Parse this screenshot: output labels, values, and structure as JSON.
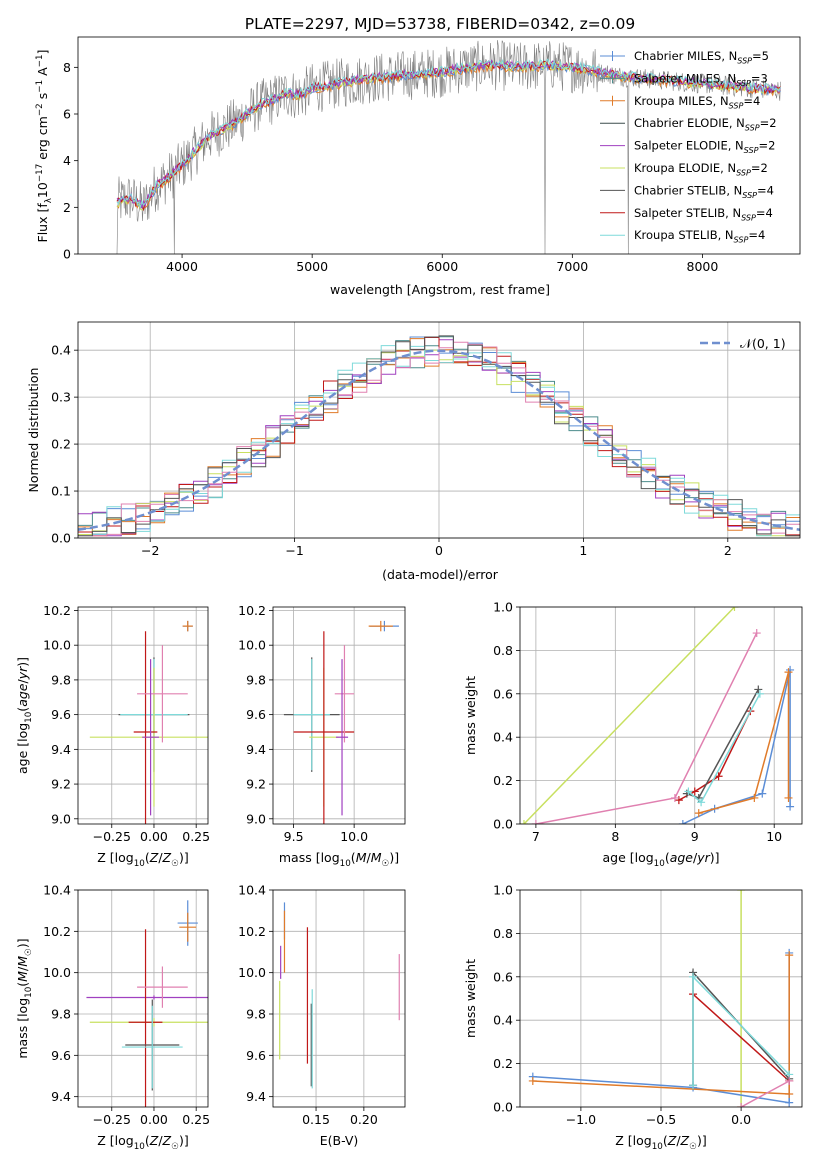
{
  "figure_title": "PLATE=2297, MJD=53738, FIBERID=0342, z=0.09",
  "series_colors": {
    "chabrier_miles": "#5b8dd6",
    "salpeter_miles": "#4c8c8c",
    "kroupa_miles": "#e07b2a",
    "chabrier_elodie": "#3d4d4d",
    "salpeter_elodie": "#a040c0",
    "kroupa_elodie": "#c8e060",
    "chabrier_stelib": "#555555",
    "salpeter_stelib": "#c01818",
    "kroupa_stelib": "#7fdada",
    "observed": "#808080",
    "reference": "#6f8fcf",
    "extra_pink": "#e080b0"
  },
  "chart_data": [
    {
      "id": "spectrum",
      "type": "line",
      "xlabel": "wavelength [Angstrom, rest frame]",
      "ylabel": "Flux [f_λ10^-17 erg cm^-2 s^-1 A^-1]",
      "xlim": [
        3200,
        8750
      ],
      "ylim": [
        0,
        9.3
      ],
      "xticks": [
        4000,
        5000,
        6000,
        7000,
        8000
      ],
      "yticks": [
        0,
        2,
        4,
        6,
        8
      ],
      "grid": false,
      "legend_position": "right",
      "legend": [
        {
          "label": "Chabrier MILES, N_SSP=5",
          "color_key": "chabrier_miles"
        },
        {
          "label": "Salpeter MILES, N_SSP=3",
          "color_key": "salpeter_miles"
        },
        {
          "label": "Kroupa MILES, N_SSP=4",
          "color_key": "kroupa_miles"
        },
        {
          "label": "Chabrier ELODIE, N_SSP=2",
          "color_key": "chabrier_elodie"
        },
        {
          "label": "Salpeter ELODIE, N_SSP=2",
          "color_key": "salpeter_elodie"
        },
        {
          "label": "Kroupa ELODIE, N_SSP=2",
          "color_key": "kroupa_elodie"
        },
        {
          "label": "Chabrier STELIB, N_SSP=4",
          "color_key": "chabrier_stelib"
        },
        {
          "label": "Salpeter STELIB, N_SSP=4",
          "color_key": "salpeter_stelib"
        },
        {
          "label": "Kroupa STELIB, N_SSP=4",
          "color_key": "kroupa_stelib"
        }
      ],
      "model_curve": {
        "x": [
          3500,
          3600,
          3700,
          3800,
          3900,
          4000,
          4100,
          4200,
          4300,
          4400,
          4500,
          4600,
          4700,
          4800,
          4900,
          5000,
          5200,
          5400,
          5600,
          5800,
          6000,
          6200,
          6400,
          6600,
          6800,
          7000,
          7200,
          7400,
          7600,
          7800,
          8000,
          8200,
          8400,
          8600
        ],
        "y": [
          2.2,
          2.4,
          2.0,
          2.9,
          3.3,
          3.8,
          4.4,
          5.0,
          5.3,
          5.6,
          6.0,
          6.4,
          6.6,
          6.9,
          6.8,
          7.1,
          7.3,
          7.5,
          7.6,
          7.7,
          7.8,
          8.0,
          8.1,
          8.0,
          8.1,
          8.0,
          7.8,
          7.6,
          7.5,
          7.4,
          7.3,
          7.2,
          7.1,
          7.0
        ]
      },
      "observed_noise_amplitude": 1.1,
      "observed_dropouts": [
        {
          "x": 3500,
          "y": 0
        },
        {
          "x": 3940,
          "y": 0
        },
        {
          "x": 6790,
          "y": 0
        },
        {
          "x": 7430,
          "y": 0
        }
      ]
    },
    {
      "id": "residuals",
      "type": "line",
      "xlabel": "(data-model)/error",
      "ylabel": "Normed distribution",
      "xlim": [
        -2.5,
        2.5
      ],
      "ylim": [
        0,
        0.46
      ],
      "xticks": [
        -2,
        -1,
        0,
        1,
        2
      ],
      "yticks": [
        0.0,
        0.1,
        0.2,
        0.3,
        0.4
      ],
      "grid": true,
      "legend_position": "top-right",
      "reference_label": "𝒩(0, 1)",
      "bin_width": 0.1,
      "hist_jitter": 0.035
    },
    {
      "id": "z_vs_age",
      "type": "scatter",
      "xlabel": "Z [log10(Z/Z☉)]",
      "ylabel": "age  [log10(age/yr)]",
      "xlim": [
        -0.45,
        0.32
      ],
      "ylim": [
        8.97,
        10.22
      ],
      "xticks": [
        -0.25,
        0.0,
        0.25
      ],
      "yticks": [
        9.0,
        9.2,
        9.4,
        9.6,
        9.8,
        10.0,
        10.2
      ],
      "grid": true,
      "points": [
        {
          "x": 0.2,
          "y": 10.11,
          "xerr": 0.03,
          "yerr": 0.03,
          "color_key": "chabrier_miles"
        },
        {
          "x": 0.2,
          "y": 10.11,
          "xerr": 0.03,
          "yerr": 0.03,
          "color_key": "kroupa_miles"
        },
        {
          "x": 0.0,
          "y": 9.6,
          "xerr": 0.21,
          "yerr": 0.33,
          "color_key": "chabrier_stelib"
        },
        {
          "x": 0.0,
          "y": 9.6,
          "xerr": 0.2,
          "yerr": 0.32,
          "color_key": "kroupa_stelib"
        },
        {
          "x": 0.0,
          "y": 9.47,
          "xerr": 0.38,
          "yerr": 0.4,
          "color_key": "kroupa_elodie"
        },
        {
          "x": -0.05,
          "y": 9.5,
          "xerr": 0.07,
          "yerr": 0.58,
          "color_key": "salpeter_stelib"
        },
        {
          "x": 0.05,
          "y": 9.72,
          "xerr": 0.15,
          "yerr": 0.28,
          "color_key": "extra_pink"
        },
        {
          "x": -0.02,
          "y": 9.47,
          "xerr": 0.05,
          "yerr": 0.45,
          "color_key": "salpeter_elodie"
        }
      ]
    },
    {
      "id": "mass_vs_age",
      "type": "scatter",
      "xlabel": "mass [log10(M/M☉)]",
      "ylabel": "",
      "xlim": [
        9.33,
        10.42
      ],
      "ylim": [
        8.97,
        10.22
      ],
      "xticks": [
        9.5,
        10.0
      ],
      "yticks": [
        9.0,
        9.2,
        9.4,
        9.6,
        9.8,
        10.0,
        10.2
      ],
      "grid": true,
      "points": [
        {
          "x": 10.25,
          "y": 10.11,
          "xerr": 0.12,
          "yerr": 0.03,
          "color_key": "chabrier_miles"
        },
        {
          "x": 10.22,
          "y": 10.11,
          "xerr": 0.1,
          "yerr": 0.03,
          "color_key": "kroupa_miles"
        },
        {
          "x": 9.65,
          "y": 9.6,
          "xerr": 0.23,
          "yerr": 0.33,
          "color_key": "chabrier_stelib"
        },
        {
          "x": 9.65,
          "y": 9.6,
          "xerr": 0.15,
          "yerr": 0.32,
          "color_key": "kroupa_stelib"
        },
        {
          "x": 9.75,
          "y": 9.47,
          "xerr": 0.12,
          "yerr": 0.4,
          "color_key": "kroupa_elodie"
        },
        {
          "x": 9.75,
          "y": 9.5,
          "xerr": 0.25,
          "yerr": 0.58,
          "color_key": "salpeter_stelib"
        },
        {
          "x": 9.92,
          "y": 9.72,
          "xerr": 0.08,
          "yerr": 0.28,
          "color_key": "extra_pink"
        },
        {
          "x": 9.9,
          "y": 9.47,
          "xerr": 0.05,
          "yerr": 0.45,
          "color_key": "salpeter_elodie"
        }
      ]
    },
    {
      "id": "age_vs_weight",
      "type": "line",
      "xlabel": "age  [log10(age/yr)]",
      "ylabel": "mass weight",
      "xlim": [
        6.8,
        10.35
      ],
      "ylim": [
        0,
        1.0
      ],
      "xticks": [
        7,
        8,
        9,
        10
      ],
      "yticks": [
        0.0,
        0.2,
        0.4,
        0.6,
        0.8,
        1.0
      ],
      "grid": true,
      "series": [
        {
          "color_key": "kroupa_elodie",
          "x": [
            6.85,
            9.5
          ],
          "y": [
            0.0,
            1.0
          ]
        },
        {
          "color_key": "chabrier_miles",
          "x": [
            8.85,
            9.25,
            9.85,
            10.2,
            10.2
          ],
          "y": [
            0.0,
            0.07,
            0.14,
            0.71,
            0.08
          ]
        },
        {
          "color_key": "kroupa_miles",
          "x": [
            9.05,
            9.75,
            10.18,
            10.18
          ],
          "y": [
            0.05,
            0.12,
            0.7,
            0.12
          ]
        },
        {
          "color_key": "salpeter_stelib",
          "x": [
            8.8,
            9.0,
            9.3,
            9.7
          ],
          "y": [
            0.11,
            0.15,
            0.22,
            0.52
          ]
        },
        {
          "color_key": "chabrier_stelib",
          "x": [
            8.9,
            9.05,
            9.8
          ],
          "y": [
            0.14,
            0.12,
            0.62
          ]
        },
        {
          "color_key": "kroupa_stelib",
          "x": [
            8.92,
            9.08,
            9.82
          ],
          "y": [
            0.15,
            0.1,
            0.6
          ]
        },
        {
          "color_key": "extra_pink",
          "x": [
            7.0,
            8.75,
            9.78
          ],
          "y": [
            0.0,
            0.12,
            0.88
          ]
        }
      ]
    },
    {
      "id": "z_vs_mass",
      "type": "scatter",
      "xlabel": "Z [log10(Z/Z☉)]",
      "ylabel": "mass [log10(M/M☉)]",
      "xlim": [
        -0.45,
        0.32
      ],
      "ylim": [
        9.35,
        10.4
      ],
      "xticks": [
        -0.25,
        0.0,
        0.25
      ],
      "yticks": [
        9.4,
        9.6,
        9.8,
        10.0,
        10.2,
        10.4
      ],
      "grid": true,
      "points": [
        {
          "x": 0.2,
          "y": 10.24,
          "xerr": 0.06,
          "yerr": 0.11,
          "color_key": "chabrier_miles"
        },
        {
          "x": 0.2,
          "y": 10.22,
          "xerr": 0.05,
          "yerr": 0.07,
          "color_key": "kroupa_miles"
        },
        {
          "x": 0.0,
          "y": 9.88,
          "xerr": 0.4,
          "yerr": 0.01,
          "color_key": "salpeter_elodie"
        },
        {
          "x": 0.0,
          "y": 9.76,
          "xerr": 0.38,
          "yerr": 0.02,
          "color_key": "kroupa_elodie"
        },
        {
          "x": -0.05,
          "y": 9.76,
          "xerr": 0.1,
          "yerr": 0.45,
          "color_key": "salpeter_stelib"
        },
        {
          "x": 0.05,
          "y": 9.93,
          "xerr": 0.15,
          "yerr": 0.1,
          "color_key": "extra_pink"
        },
        {
          "x": -0.01,
          "y": 9.65,
          "xerr": 0.16,
          "yerr": 0.22,
          "color_key": "chabrier_stelib"
        },
        {
          "x": -0.01,
          "y": 9.64,
          "xerr": 0.18,
          "yerr": 0.2,
          "color_key": "kroupa_stelib"
        }
      ]
    },
    {
      "id": "ebv_vs_mass",
      "type": "scatter",
      "xlabel": "E(B-V)",
      "ylabel": "",
      "xlim": [
        0.105,
        0.243
      ],
      "ylim": [
        9.35,
        10.4
      ],
      "xticks": [
        0.15,
        0.2
      ],
      "yticks": [
        9.4,
        9.6,
        9.8,
        10.0,
        10.2,
        10.4
      ],
      "grid": true,
      "points": [
        {
          "x": 0.117,
          "y": 10.25,
          "xerr": 0.0,
          "yerr": 0.09,
          "color_key": "chabrier_miles"
        },
        {
          "x": 0.117,
          "y": 10.15,
          "xerr": 0.0,
          "yerr": 0.15,
          "color_key": "kroupa_miles"
        },
        {
          "x": 0.113,
          "y": 10.05,
          "xerr": 0.0,
          "yerr": 0.08,
          "color_key": "salpeter_elodie"
        },
        {
          "x": 0.112,
          "y": 9.77,
          "xerr": 0.0,
          "yerr": 0.19,
          "color_key": "kroupa_elodie"
        },
        {
          "x": 0.141,
          "y": 9.89,
          "xerr": 0.0,
          "yerr": 0.33,
          "color_key": "salpeter_stelib"
        },
        {
          "x": 0.145,
          "y": 9.65,
          "xerr": 0.0,
          "yerr": 0.2,
          "color_key": "chabrier_stelib"
        },
        {
          "x": 0.146,
          "y": 9.68,
          "xerr": 0.0,
          "yerr": 0.24,
          "color_key": "kroupa_stelib"
        },
        {
          "x": 0.237,
          "y": 9.93,
          "xerr": 0.0,
          "yerr": 0.16,
          "color_key": "extra_pink"
        }
      ]
    },
    {
      "id": "z_vs_weight",
      "type": "line",
      "xlabel": "Z [log10(Z/Z☉)]",
      "ylabel": "mass weight",
      "xlim": [
        -1.38,
        0.38
      ],
      "ylim": [
        0,
        1.0
      ],
      "xticks": [
        -1.0,
        -0.5,
        0.0
      ],
      "yticks": [
        0.0,
        0.2,
        0.4,
        0.6,
        0.8,
        1.0
      ],
      "grid": true,
      "series": [
        {
          "color_key": "kroupa_elodie",
          "x": [
            0.0,
            0.0
          ],
          "y": [
            0.0,
            1.0
          ]
        },
        {
          "color_key": "chabrier_miles",
          "x": [
            -1.3,
            -0.3,
            0.3,
            0.3
          ],
          "y": [
            0.14,
            0.09,
            0.02,
            0.71
          ]
        },
        {
          "color_key": "kroupa_miles",
          "x": [
            -1.3,
            0.3,
            0.3
          ],
          "y": [
            0.12,
            0.06,
            0.7
          ]
        },
        {
          "color_key": "salpeter_stelib",
          "x": [
            -0.3,
            0.3
          ],
          "y": [
            0.52,
            0.12
          ]
        },
        {
          "color_key": "chabrier_stelib",
          "x": [
            -0.3,
            -0.3,
            0.3
          ],
          "y": [
            0.1,
            0.62,
            0.13
          ]
        },
        {
          "color_key": "kroupa_stelib",
          "x": [
            -0.3,
            -0.3,
            0.3
          ],
          "y": [
            0.1,
            0.6,
            0.15
          ]
        },
        {
          "color_key": "extra_pink",
          "x": [
            0.0,
            0.3
          ],
          "y": [
            0.0,
            0.12
          ]
        }
      ]
    }
  ]
}
